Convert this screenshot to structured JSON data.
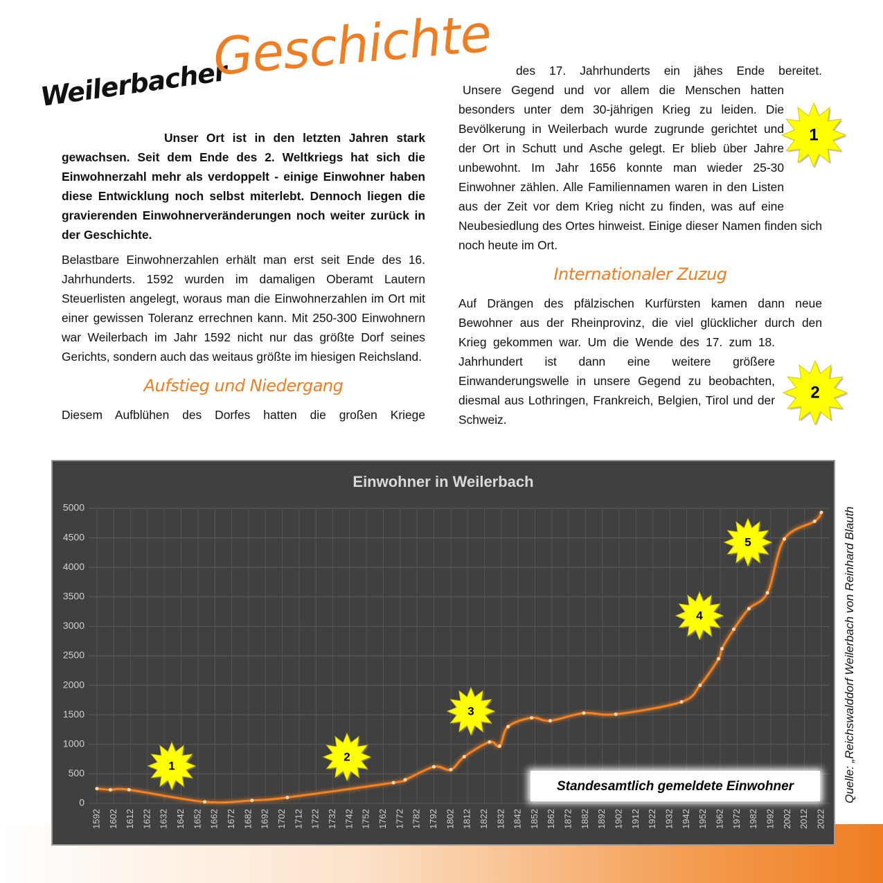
{
  "header": {
    "title_small": "Weilerbacher",
    "title_large": "Geschichte"
  },
  "left": {
    "intro": "Unser Ort ist in den letzten Jahren stark gewachsen. Seit dem Ende des 2. Weltkriegs hat sich die Einwohnerzahl mehr als verdoppelt - einige Einwohner haben diese Entwicklung noch selbst miterlebt. Dennoch liegen die gravierenden Einwohnerveränderungen noch weiter zurück in der Geschichte.",
    "paragraph": "Belastbare Einwohnerzahlen erhält man erst seit Ende des 16. Jahrhunderts. 1592 wurden im damaligen Oberamt Lautern Steuerlisten angelegt, woraus man die Einwohnerzahlen im Ort mit einer gewissen Toleranz errechnen kann. Mit 250-300 Einwohnern war Weilerbach im Jahr 1592 nicht nur das größte Dorf seines Gerichts, sondern auch das weitaus größte im hiesigen Reichsland.",
    "heading": "Aufstieg und Niedergang",
    "paragraph_end": "Diesem Aufblühen des Dorfes hatten die großen Kriege"
  },
  "right": {
    "continuation": "des 17. Jahrhunderts ein jähes Ende bereitet.",
    "paragraph": "Unsere Gegend und vor allem die Menschen hatten besonders unter dem 30-jährigen Krieg zu leiden. Die Bevölkerung in Weilerbach wurde zugrunde gerichtet und der Ort in Schutt und Asche gelegt. Er blieb über Jahre unbewohnt. Im Jahr 1656 konnte man wieder 25-30 Einwohner zählen. Alle Familiennamen waren in den Listen aus der Zeit vor dem Krieg nicht zu finden, was auf eine Neubesiedlung des Ortes hinweist. Einige dieser Namen finden sich noch heute im Ort.",
    "heading": "Internationaler Zuzug",
    "paragraph2": "Auf Drängen des pfälzischen Kurfürsten kamen dann neue Bewohner aus der Rheinprovinz, die viel glücklicher durch den Krieg gekommen war. Um die Wende des 17. zum 18. Jahrhundert ist dann eine weitere größere Einwanderungswelle in unsere Gegend zu beobachten, diesmal aus Lothringen, Frankreich, Belgien, Tirol und der Schweiz.",
    "stars": [
      "1",
      "2"
    ]
  },
  "source": "Quelle: „Reichswalddorf Weilerbach von Reinhard Blauth",
  "chart_data": {
    "type": "line",
    "title": "Einwohner in Weilerbach",
    "x": [
      1592,
      1600,
      1611,
      1656,
      1684,
      1705,
      1768,
      1775,
      1792,
      1802,
      1810,
      1825,
      1831,
      1836,
      1850,
      1861,
      1881,
      1900,
      1939,
      1950,
      1961,
      1963,
      1970,
      1979,
      1990,
      2000,
      2018,
      2022
    ],
    "series": [
      {
        "name": "Standesamtlich gemeldete Einwohner",
        "color": "#f58220",
        "values": [
          250,
          230,
          230,
          25,
          50,
          100,
          350,
          400,
          620,
          570,
          790,
          1040,
          970,
          1300,
          1450,
          1400,
          1530,
          1510,
          1720,
          2000,
          2450,
          2620,
          2950,
          3300,
          3570,
          4480,
          4780,
          4930
        ]
      }
    ],
    "xlim": [
      1592,
      2022
    ],
    "xticks": [
      1592,
      1602,
      1612,
      1622,
      1632,
      1642,
      1652,
      1662,
      1672,
      1682,
      1692,
      1702,
      1712,
      1722,
      1732,
      1742,
      1752,
      1762,
      1772,
      1782,
      1792,
      1802,
      1812,
      1822,
      1832,
      1842,
      1852,
      1862,
      1872,
      1882,
      1892,
      1902,
      1912,
      1922,
      1932,
      1942,
      1952,
      1962,
      1972,
      1982,
      1992,
      2002,
      2012,
      2022
    ],
    "ylim": [
      0,
      5000
    ],
    "yticks": [
      0,
      500,
      1000,
      1500,
      2000,
      2500,
      3000,
      3500,
      4000,
      4500,
      5000
    ],
    "grid": true,
    "annotations": [
      "1",
      "2",
      "3",
      "4",
      "5"
    ]
  }
}
